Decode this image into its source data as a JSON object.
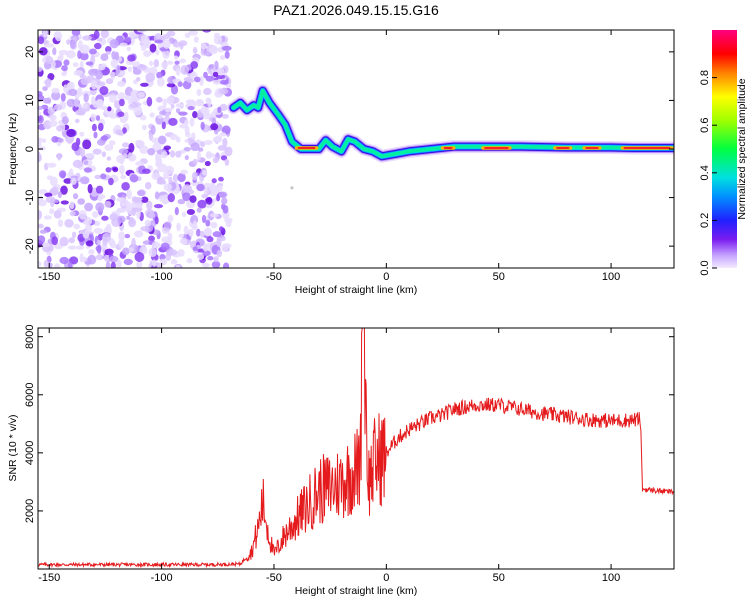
{
  "title": "PAZ1.2026.049.15.15.G16",
  "chart_data": [
    {
      "type": "heatmap",
      "xlabel": "Height of straight line (km)",
      "ylabel": "Frequency (Hz)",
      "xlim": [
        -155,
        128
      ],
      "ylim": [
        -24.5,
        24.5
      ],
      "x_ticks": [
        -150,
        -100,
        -50,
        0,
        50,
        100
      ],
      "y_ticks": [
        -20,
        -10,
        0,
        10,
        20
      ],
      "colorbar": {
        "label": "Normalized spectral amplitude",
        "range": [
          0,
          1
        ],
        "ticks": [
          "0.0",
          "0.2",
          "0.4",
          "0.6",
          "0.8"
        ]
      },
      "noise_region_x": [
        -155,
        -70
      ],
      "signal_track": [
        {
          "x": -68,
          "f": 8.5
        },
        {
          "x": -65,
          "f": 9.5
        },
        {
          "x": -62,
          "f": 8.0
        },
        {
          "x": -59,
          "f": 9.0
        },
        {
          "x": -57,
          "f": 8.5
        },
        {
          "x": -55,
          "f": 12.0
        },
        {
          "x": -52,
          "f": 9.5
        },
        {
          "x": -48,
          "f": 7.0
        },
        {
          "x": -45,
          "f": 5.0
        },
        {
          "x": -42,
          "f": 1.5
        },
        {
          "x": -38,
          "f": 0.0
        },
        {
          "x": -30,
          "f": 0.0
        },
        {
          "x": -27,
          "f": 1.8
        },
        {
          "x": -24,
          "f": 0.5
        },
        {
          "x": -20,
          "f": -0.5
        },
        {
          "x": -17,
          "f": 2.0
        },
        {
          "x": -14,
          "f": 1.5
        },
        {
          "x": -10,
          "f": 0.0
        },
        {
          "x": -6,
          "f": -0.5
        },
        {
          "x": -2,
          "f": -1.5
        },
        {
          "x": 4,
          "f": -1.0
        },
        {
          "x": 10,
          "f": -0.5
        },
        {
          "x": 20,
          "f": 0.0
        },
        {
          "x": 30,
          "f": 0.5
        },
        {
          "x": 45,
          "f": 0.5
        },
        {
          "x": 60,
          "f": 0.5
        },
        {
          "x": 80,
          "f": 0.3
        },
        {
          "x": 100,
          "f": 0.3
        },
        {
          "x": 110,
          "f": 0.2
        },
        {
          "x": 128,
          "f": 0.2
        }
      ]
    },
    {
      "type": "line",
      "xlabel": "Height of straight line (km)",
      "ylabel": "SNR (10 * v/v)",
      "xlim": [
        -155,
        128
      ],
      "ylim": [
        0,
        8300
      ],
      "x_ticks": [
        -150,
        -100,
        -50,
        0,
        50,
        100
      ],
      "y_ticks": [
        2000,
        4000,
        6000,
        8000
      ],
      "color": "#e41a1c",
      "series": [
        {
          "points": [
            [
              -155,
              150
            ],
            [
              -130,
              150
            ],
            [
              -100,
              150
            ],
            [
              -80,
              150
            ],
            [
              -65,
              170
            ],
            [
              -60,
              600
            ],
            [
              -57,
              1400
            ],
            [
              -55,
              2300
            ],
            [
              -52,
              1100
            ],
            [
              -50,
              500
            ],
            [
              -45,
              1200
            ],
            [
              -40,
              1700
            ],
            [
              -35,
              2200
            ],
            [
              -30,
              2700
            ],
            [
              -25,
              2800
            ],
            [
              -20,
              3000
            ],
            [
              -15,
              3300
            ],
            [
              -12,
              3500
            ],
            [
              -10,
              8200
            ],
            [
              -8,
              3000
            ],
            [
              -5,
              3700
            ],
            [
              0,
              4000
            ],
            [
              5,
              4500
            ],
            [
              10,
              4800
            ],
            [
              15,
              5000
            ],
            [
              20,
              5200
            ],
            [
              25,
              5300
            ],
            [
              30,
              5500
            ],
            [
              40,
              5650
            ],
            [
              50,
              5650
            ],
            [
              60,
              5500
            ],
            [
              70,
              5350
            ],
            [
              80,
              5250
            ],
            [
              90,
              5150
            ],
            [
              100,
              5100
            ],
            [
              113,
              5150
            ],
            [
              114,
              2750
            ],
            [
              120,
              2700
            ],
            [
              128,
              2650
            ]
          ]
        }
      ]
    }
  ]
}
